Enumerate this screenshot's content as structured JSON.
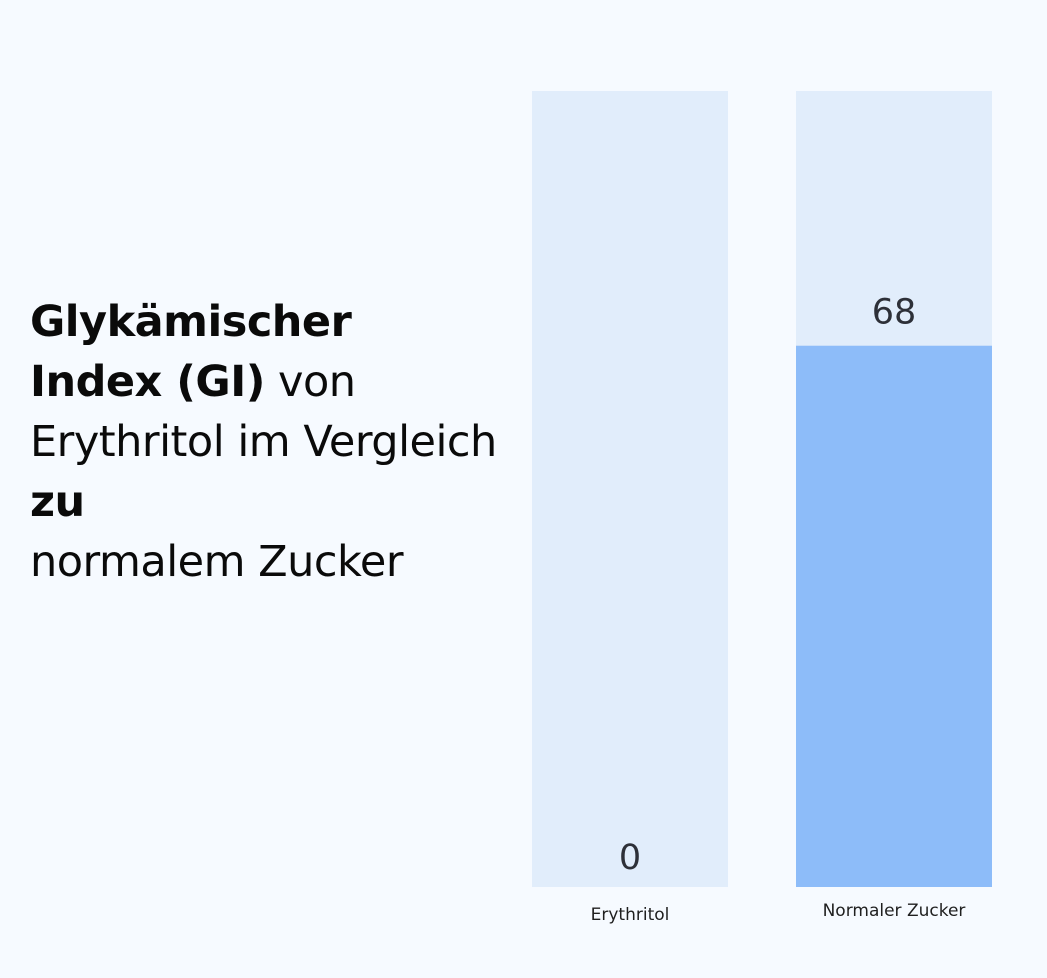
{
  "heading": {
    "line1_bold": "Glykämischer",
    "line2_bold": "Index (GI)",
    "line2_light": " von",
    "line3_light": "Erythritol im Vergleich",
    "line4_bold": "zu",
    "line5_light": "normalem Zucker"
  },
  "colors": {
    "background": "#f6faff",
    "track": "#e1edfb",
    "fill": "#8dbcf9"
  },
  "chart_data": {
    "type": "bar",
    "title": "Glykämischer Index (GI) von Erythritol im Vergleich zu normalem Zucker",
    "categories": [
      "Erythritol",
      "Normaler Zucker"
    ],
    "values": [
      0,
      68
    ],
    "ylim": [
      0,
      100
    ],
    "grid": false,
    "legend": "none"
  }
}
